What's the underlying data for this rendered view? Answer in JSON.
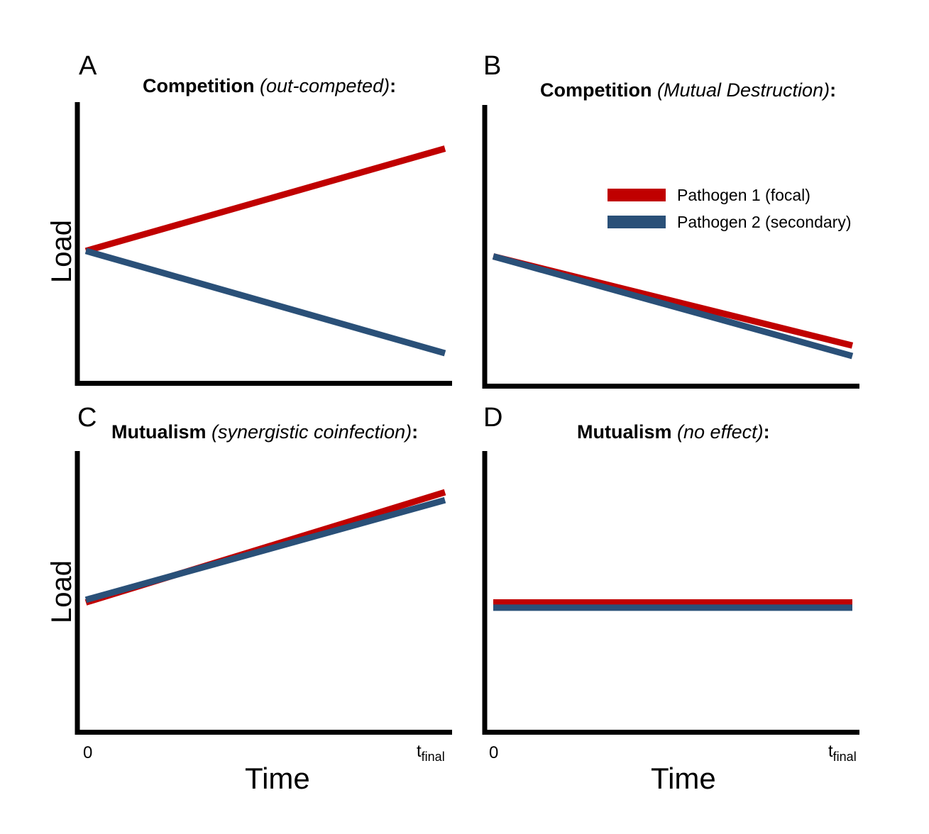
{
  "chart_data": [
    {
      "type": "line",
      "panel": "A",
      "title_bold": "Competition",
      "title_italic": "(out-competed)",
      "title_suffix": ":",
      "ylabel": "Load",
      "x": [
        0,
        1
      ],
      "ylim": [
        0,
        1
      ],
      "series": [
        {
          "key": "p1",
          "values": [
            0.46,
            0.85
          ]
        },
        {
          "key": "p2",
          "values": [
            0.46,
            0.07
          ]
        }
      ]
    },
    {
      "type": "line",
      "panel": "B",
      "title_bold": "Competition",
      "title_italic": "(Mutual Destruction)",
      "title_suffix": ":",
      "ylabel": "",
      "x": [
        0,
        1
      ],
      "ylim": [
        0,
        1
      ],
      "legend": [
        {
          "name": "Pathogen 1 (focal)",
          "color": "#c00000"
        },
        {
          "name": "Pathogen 2 (secondary)",
          "color": "#2a5078"
        }
      ],
      "legend_position": "top-right",
      "series": [
        {
          "key": "p1",
          "values": [
            0.45,
            0.11
          ]
        },
        {
          "key": "p2",
          "values": [
            0.45,
            0.07
          ]
        }
      ]
    },
    {
      "type": "line",
      "panel": "C",
      "title_bold": "Mutualism",
      "title_italic": "(synergistic coinfection)",
      "title_suffix": ":",
      "ylabel": "Load",
      "x": [
        0,
        1
      ],
      "ylim": [
        0,
        1
      ],
      "series": [
        {
          "key": "p1",
          "values": [
            0.45,
            0.87
          ]
        },
        {
          "key": "p2",
          "values": [
            0.46,
            0.84
          ]
        }
      ]
    },
    {
      "type": "line",
      "panel": "D",
      "title_bold": "Mutualism",
      "title_italic": "(no effect)",
      "title_suffix": ":",
      "ylabel": "",
      "x": [
        0,
        1
      ],
      "ylim": [
        0,
        1
      ],
      "series": [
        {
          "key": "p1",
          "values": [
            0.45,
            0.45
          ]
        },
        {
          "key": "p2",
          "values": [
            0.43,
            0.43
          ]
        }
      ]
    }
  ],
  "colors": {
    "p1": "#c00000",
    "p2": "#2a5078",
    "axis": "#000000"
  },
  "xaxis": {
    "tick_start": "0",
    "tick_end_base": "t",
    "tick_end_sub": "final",
    "label": "Time"
  }
}
